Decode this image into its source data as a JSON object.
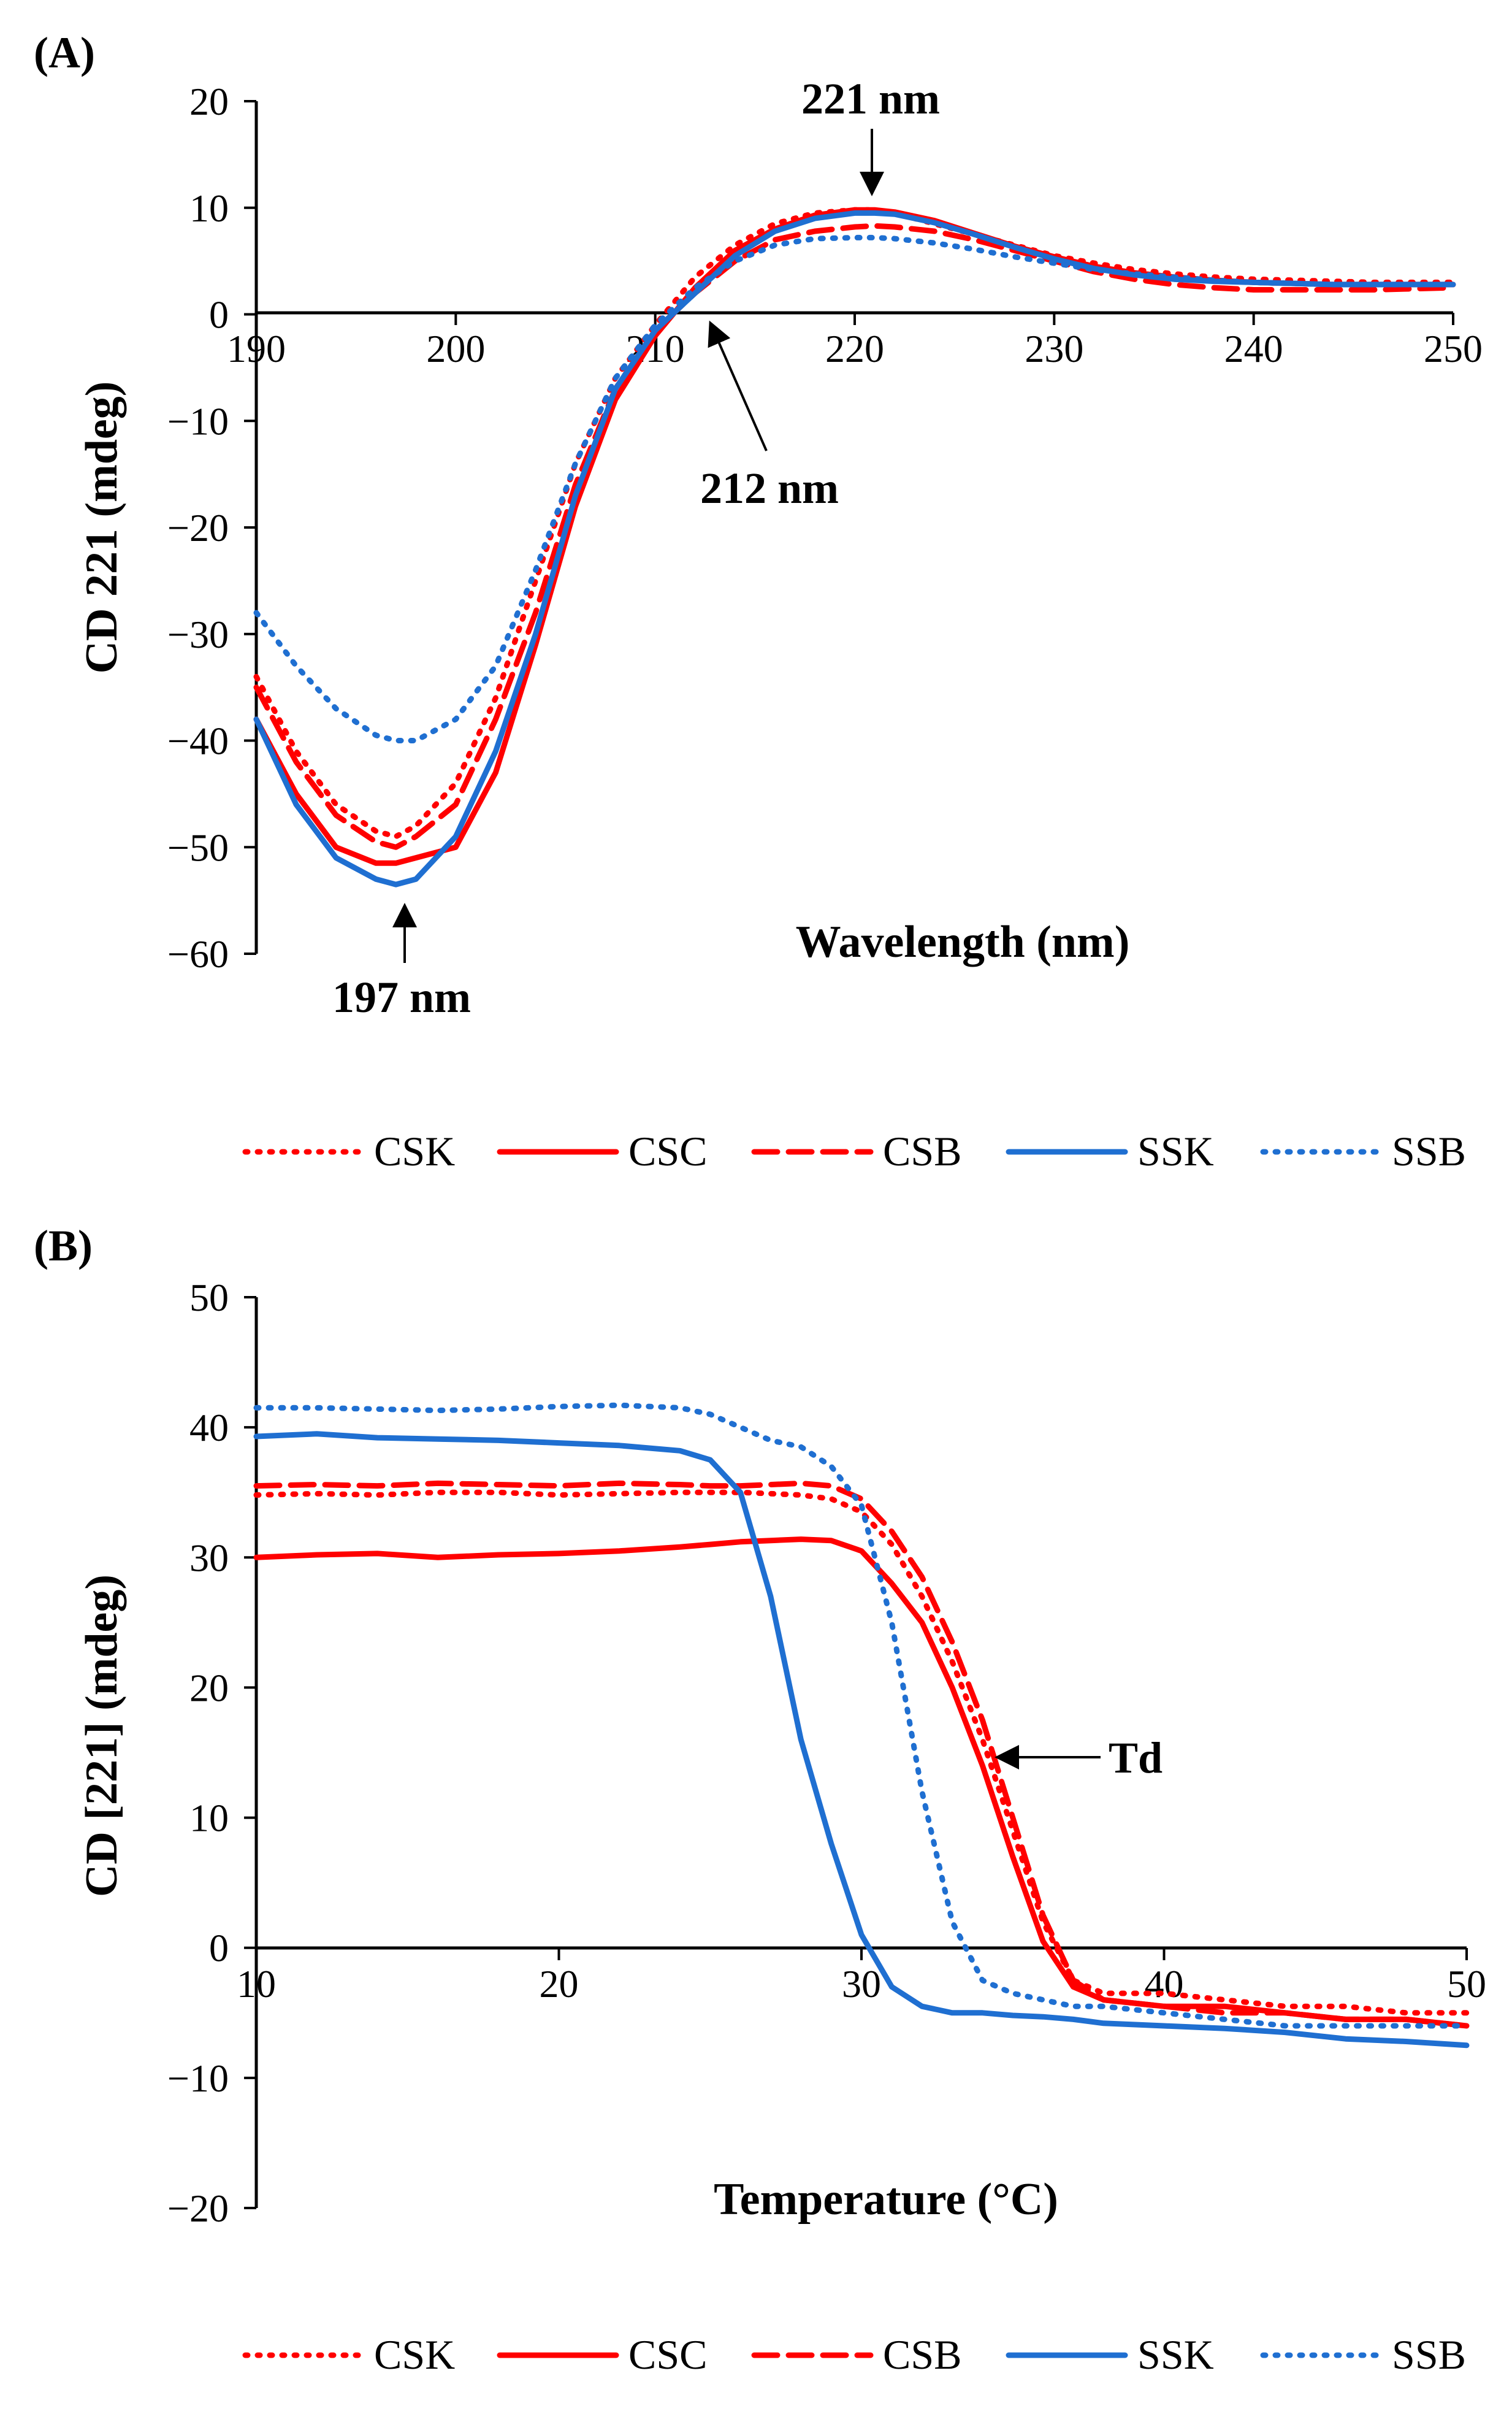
{
  "figure_domain": "Chart",
  "chart_data": [
    {
      "panel_label": "(A)",
      "type": "line",
      "xlabel": "Wavelength (nm)",
      "ylabel": "CD 221 (mdeg)",
      "xlim": [
        190,
        250
      ],
      "ylim": [
        -60,
        20
      ],
      "xticks": [
        "190",
        "200",
        "210",
        "220",
        "230",
        "240",
        "250"
      ],
      "yticks": [
        "20",
        "10",
        "0",
        "−10",
        "−20",
        "−30",
        "−40",
        "−50",
        "−60"
      ],
      "annotations": [
        {
          "text": "221 nm",
          "x": 221,
          "y": 9.5
        },
        {
          "text": "212 nm",
          "x": 212,
          "y": 0
        },
        {
          "text": "197 nm",
          "x": 197,
          "y": -53.5
        }
      ],
      "x": [
        190,
        192,
        194,
        196,
        197,
        198,
        200,
        202,
        204,
        206,
        208,
        210,
        212,
        214,
        216,
        218,
        220,
        221,
        222,
        224,
        226,
        228,
        230,
        232,
        234,
        236,
        238,
        240,
        242,
        244,
        246,
        248,
        250
      ],
      "series": [
        {
          "name": "CSK",
          "color": "#ff0000",
          "dash": "dot",
          "values": [
            -34,
            -41,
            -46,
            -48.5,
            -49,
            -48,
            -44,
            -36,
            -25,
            -14,
            -6,
            -1,
            3.5,
            6.5,
            8.5,
            9.5,
            9.8,
            9.8,
            9.5,
            8.5,
            7.5,
            6.5,
            5.5,
            4.8,
            4.2,
            3.8,
            3.5,
            3.3,
            3.2,
            3.1,
            3.0,
            3.0,
            3.0
          ]
        },
        {
          "name": "CSC",
          "color": "#ff0000",
          "dash": "solid",
          "values": [
            -38,
            -45,
            -50,
            -51.5,
            -51.5,
            -51,
            -50,
            -43,
            -31,
            -18,
            -8,
            -2,
            2.5,
            6,
            8,
            9.3,
            9.8,
            9.8,
            9.6,
            8.8,
            7.6,
            6.4,
            5.4,
            4.5,
            3.9,
            3.5,
            3.2,
            3.0,
            2.9,
            2.8,
            2.8,
            2.8,
            2.8
          ]
        },
        {
          "name": "CSB",
          "color": "#ff0000",
          "dash": "dash",
          "values": [
            -35,
            -42,
            -47,
            -49.5,
            -50,
            -49,
            -46,
            -38,
            -28,
            -16,
            -7,
            -1.5,
            2,
            5,
            7,
            7.8,
            8.2,
            8.3,
            8.2,
            7.8,
            7,
            6,
            5,
            4,
            3.3,
            2.8,
            2.5,
            2.3,
            2.3,
            2.3,
            2.3,
            2.4,
            2.5
          ]
        },
        {
          "name": "SSK",
          "color": "#1f6fd1",
          "dash": "solid",
          "values": [
            -38,
            -46,
            -51,
            -53,
            -53.5,
            -53,
            -49,
            -41,
            -30,
            -17,
            -7,
            -1.5,
            2,
            5.5,
            7.8,
            9,
            9.5,
            9.5,
            9.4,
            8.6,
            7.5,
            6.3,
            5.2,
            4.3,
            3.7,
            3.3,
            3.1,
            3.0,
            2.9,
            2.8,
            2.8,
            2.8,
            2.8
          ]
        },
        {
          "name": "SSB",
          "color": "#1f6fd1",
          "dash": "dot",
          "values": [
            -28,
            -33,
            -37,
            -39.5,
            -40,
            -40,
            -38,
            -33,
            -24,
            -14,
            -6,
            -1,
            2.5,
            5,
            6.5,
            7.1,
            7.2,
            7.2,
            7.1,
            6.7,
            6.1,
            5.4,
            4.8,
            4.2,
            3.8,
            3.5,
            3.2,
            3.0,
            2.9,
            2.8,
            2.8,
            2.8,
            2.8
          ]
        }
      ],
      "legend": {
        "placement": "bottom",
        "entries": [
          "CSK",
          "CSC",
          "CSB",
          "SSK",
          "SSB"
        ]
      }
    },
    {
      "panel_label": "(B)",
      "type": "line",
      "xlabel": "Temperature (°C)",
      "ylabel": "CD [221] (mdeg)",
      "xlim": [
        10,
        50
      ],
      "ylim": [
        -20,
        50
      ],
      "xticks": [
        "10",
        "20",
        "30",
        "40",
        "50"
      ],
      "yticks": [
        "50",
        "40",
        "30",
        "20",
        "10",
        "0",
        "−10",
        "−20"
      ],
      "annotations": [
        {
          "text": "Td",
          "x": 34.5,
          "y": 15
        }
      ],
      "x": [
        10,
        12,
        14,
        16,
        18,
        20,
        22,
        24,
        25,
        26,
        27,
        28,
        29,
        30,
        31,
        32,
        33,
        34,
        35,
        36,
        37,
        38,
        40,
        42,
        44,
        46,
        48,
        50
      ],
      "series": [
        {
          "name": "CSK",
          "color": "#ff0000",
          "dash": "dot",
          "values": [
            34.8,
            34.9,
            34.8,
            35,
            35,
            34.8,
            34.9,
            35,
            35,
            35,
            34.9,
            34.8,
            34.5,
            33.5,
            31,
            27,
            22,
            16,
            9,
            2,
            -2.5,
            -3.5,
            -3.5,
            -4,
            -4.5,
            -4.5,
            -5,
            -5
          ]
        },
        {
          "name": "CSC",
          "color": "#ff0000",
          "dash": "solid",
          "values": [
            30,
            30.2,
            30.3,
            30,
            30.2,
            30.3,
            30.5,
            30.8,
            31,
            31.2,
            31.3,
            31.4,
            31.3,
            30.5,
            28,
            25,
            20,
            14,
            7,
            0.5,
            -3,
            -4,
            -4.5,
            -4.5,
            -5,
            -5.5,
            -5.5,
            -6
          ]
        },
        {
          "name": "CSB",
          "color": "#ff0000",
          "dash": "dash",
          "values": [
            35.5,
            35.6,
            35.5,
            35.7,
            35.6,
            35.5,
            35.7,
            35.6,
            35.5,
            35.5,
            35.6,
            35.7,
            35.5,
            34.5,
            32,
            28.5,
            23.5,
            17.5,
            10,
            2.5,
            -2.5,
            -4,
            -4.5,
            -5,
            -5,
            -5.5,
            -5.5,
            -6
          ]
        },
        {
          "name": "SSK",
          "color": "#1f6fd1",
          "dash": "solid",
          "values": [
            39.3,
            39.5,
            39.2,
            39.1,
            39,
            38.8,
            38.6,
            38.2,
            37.5,
            35,
            27,
            16,
            8,
            1,
            -3,
            -4.5,
            -5,
            -5,
            -5.2,
            -5.3,
            -5.5,
            -5.8,
            -6,
            -6.2,
            -6.5,
            -7,
            -7.2,
            -7.5
          ]
        },
        {
          "name": "SSB",
          "color": "#1f6fd1",
          "dash": "dot",
          "values": [
            41.5,
            41.5,
            41.4,
            41.3,
            41.4,
            41.6,
            41.7,
            41.5,
            41,
            40,
            39,
            38.5,
            37,
            34,
            25,
            12,
            2,
            -2.5,
            -3.5,
            -4,
            -4.5,
            -4.5,
            -5,
            -5.5,
            -6,
            -6,
            -6,
            -6
          ]
        }
      ],
      "legend": {
        "placement": "bottom",
        "entries": [
          "CSK",
          "CSC",
          "CSB",
          "SSK",
          "SSB"
        ]
      }
    }
  ]
}
